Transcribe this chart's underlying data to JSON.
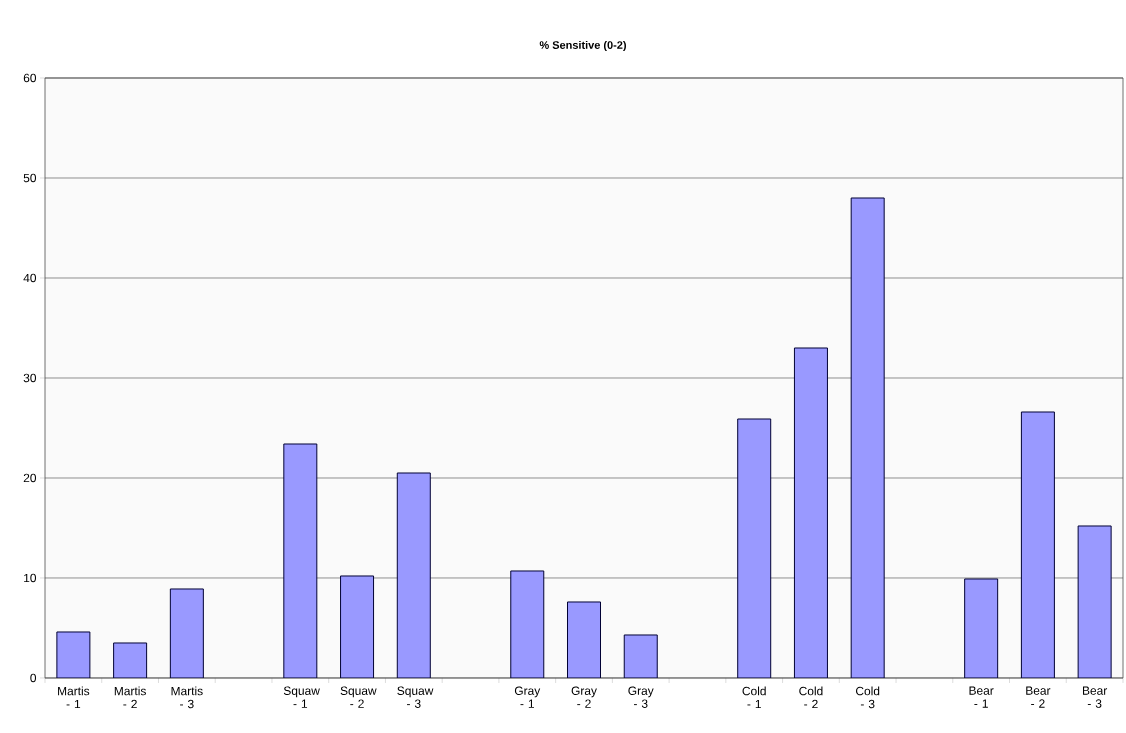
{
  "chart_data": {
    "type": "bar",
    "title": "% Sensitive (0-2)",
    "categories": [
      "Martis - 1",
      "Martis - 2",
      "Martis - 3",
      null,
      "Squaw - 1",
      "Squaw - 2",
      "Squaw - 3",
      null,
      "Gray - 1",
      "Gray - 2",
      "Gray - 3",
      null,
      "Cold - 1",
      "Cold - 2",
      "Cold - 3",
      null,
      "Bear - 1",
      "Bear - 2",
      "Bear - 3"
    ],
    "values": [
      4.6,
      3.5,
      8.9,
      null,
      23.4,
      10.2,
      20.5,
      null,
      10.7,
      7.6,
      4.3,
      null,
      25.9,
      33.0,
      48.0,
      null,
      9.9,
      26.6,
      15.2
    ],
    "color": "#9999ff",
    "ylim": [
      0,
      60
    ],
    "yticks": [
      0,
      10,
      20,
      30,
      40,
      50,
      60
    ],
    "grid": "y"
  }
}
